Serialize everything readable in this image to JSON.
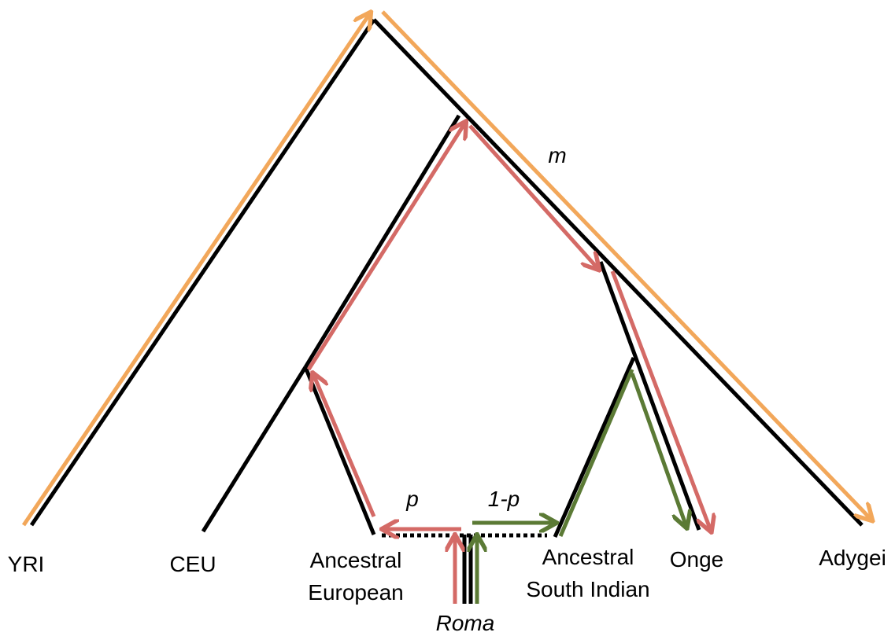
{
  "nodes": [
    {
      "label": [
        "YRI"
      ]
    },
    {
      "label": [
        "CEU"
      ]
    },
    {
      "label": [
        "Ancestral",
        "European"
      ]
    },
    {
      "label": [
        "Ancestral",
        "South Indian"
      ]
    },
    {
      "label": [
        "Onge"
      ]
    },
    {
      "label": [
        "Adygei"
      ]
    },
    {
      "label": [
        "Roma"
      ]
    }
  ],
  "edge_labels": [
    "m",
    "p",
    "1-p"
  ]
}
